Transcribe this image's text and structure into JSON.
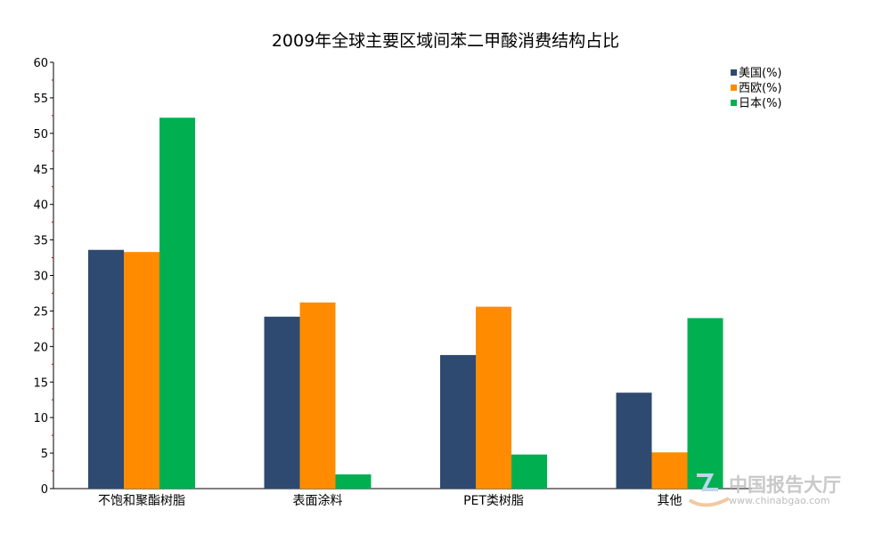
{
  "chart_data": {
    "type": "bar",
    "title": "2009年全球主要区域间苯二甲酸消费结构占比",
    "xlabel": "",
    "ylabel": "",
    "categories": [
      "不饱和聚酯树脂",
      "表面涂料",
      "PET类树脂",
      "其他"
    ],
    "series": [
      {
        "name": "美国(%)",
        "color": "#2e4a70",
        "values": [
          33.6,
          24.2,
          18.8,
          13.5
        ]
      },
      {
        "name": "西欧(%)",
        "color": "#ff8c00",
        "values": [
          33.3,
          26.2,
          25.6,
          5.1
        ]
      },
      {
        "name": "日本(%)",
        "color": "#00b050",
        "values": [
          52.2,
          2.0,
          4.8,
          24.0
        ]
      }
    ],
    "ylim": [
      0,
      60
    ],
    "yticks": [
      0,
      5,
      10,
      15,
      20,
      25,
      30,
      35,
      40,
      45,
      50,
      55,
      60
    ],
    "grid": false,
    "legend_position": "top-right"
  },
  "watermark": {
    "name": "中国报告大厅",
    "url": "www.chinabgao.com"
  }
}
